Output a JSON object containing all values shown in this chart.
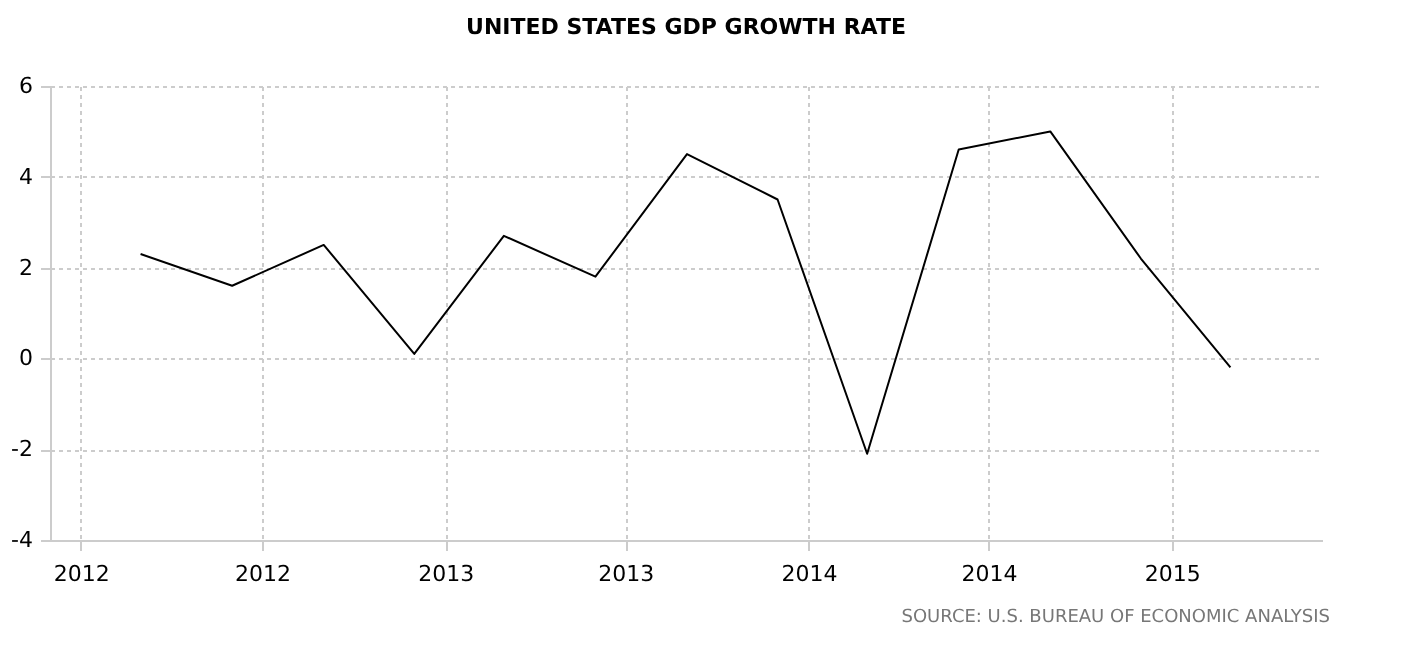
{
  "chart_data": {
    "type": "line",
    "title": "UNITED STATES GDP GROWTH RATE",
    "x": [
      "2012-03",
      "2012-06",
      "2012-09",
      "2012-12",
      "2013-03",
      "2013-06",
      "2013-09",
      "2013-12",
      "2014-03",
      "2014-06",
      "2014-09",
      "2014-12",
      "2015-03"
    ],
    "series": [
      {
        "color": "#000000",
        "values": [
          2.3,
          1.6,
          2.5,
          0.1,
          2.7,
          1.8,
          4.5,
          3.5,
          -2.1,
          4.6,
          5.0,
          2.2,
          -0.2
        ]
      }
    ],
    "xlim": [
      "2011-12",
      "2015-06"
    ],
    "xticks": [
      {
        "value": "2012-01",
        "label": "2012"
      },
      {
        "value": "2012-07",
        "label": "2012"
      },
      {
        "value": "2013-01",
        "label": "2013"
      },
      {
        "value": "2013-07",
        "label": "2013"
      },
      {
        "value": "2014-01",
        "label": "2014"
      },
      {
        "value": "2014-07",
        "label": "2014"
      },
      {
        "value": "2015-01",
        "label": "2015"
      }
    ],
    "ylim": [
      -4,
      6
    ],
    "yticks": [
      -4,
      -2,
      0,
      2,
      4,
      6
    ],
    "grid": true,
    "legend": false,
    "marker": "none",
    "line_style": "solid",
    "annotations": [
      "SOURCE: U.S. BUREAU OF ECONOMIC ANALYSIS"
    ]
  }
}
